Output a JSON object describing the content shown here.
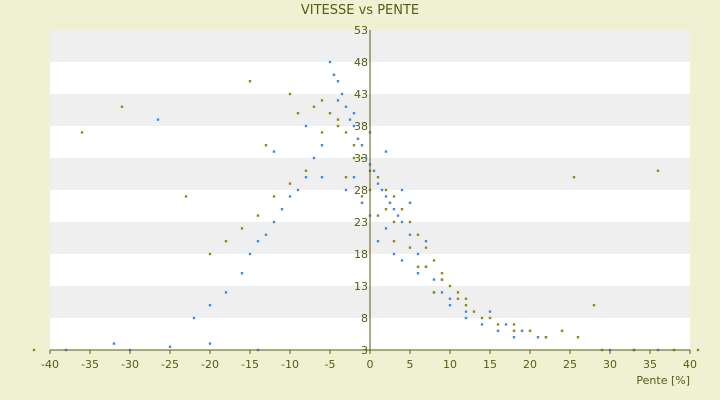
{
  "chart_data": {
    "type": "scatter",
    "title": "VITESSE vs PENTE",
    "xlabel": "Pente [%]",
    "ylabel": "",
    "xlim": [
      -40,
      40
    ],
    "ylim": [
      3,
      53
    ],
    "x_ticks": [
      -40,
      -35,
      -30,
      -25,
      -20,
      -15,
      -10,
      -5,
      0,
      5,
      10,
      15,
      20,
      25,
      30,
      35,
      40
    ],
    "x_tick_labels": [
      "-40",
      "-35",
      "-30",
      "-25",
      "-20",
      "-15",
      "-10",
      "-5",
      "0",
      "5",
      "10",
      "15",
      "20",
      "25",
      "30",
      "35",
      "40"
    ],
    "y_ticks": [
      3,
      8,
      13,
      18,
      23,
      28,
      33,
      38,
      43,
      48,
      53
    ],
    "y_tick_labels": [
      "3",
      "8",
      "13",
      "18",
      "23",
      "28",
      "33",
      "38",
      "43",
      "48",
      "53"
    ],
    "grid": "horizontal bands",
    "legend": "none",
    "colors": {
      "background": "#eef2d2",
      "plot_band_light": "#ffffff",
      "plot_band_dark": "#efefef",
      "axis": "#5a5a14",
      "series_1": "#3a8fd8",
      "series_2": "#8c8c14"
    },
    "series": [
      {
        "name": "",
        "color": "#3a8fd8",
        "x": [
          -5,
          -4.5,
          -4,
          -3.5,
          -3,
          -2.5,
          -2,
          -1.5,
          -1,
          -0.5,
          0,
          0.5,
          1,
          1.5,
          2,
          2.5,
          3,
          3.5,
          4,
          5,
          6,
          7,
          8,
          9,
          10,
          12,
          14,
          16,
          18,
          -6,
          -7,
          -8,
          -9,
          -10,
          -11,
          -12,
          -13,
          -14,
          -15,
          -16,
          -18,
          -20,
          -22,
          -26.5,
          -38,
          -30,
          -32,
          -25,
          -20,
          -14,
          -3,
          -2,
          -1,
          0,
          1,
          2,
          3,
          4,
          6,
          8,
          10,
          12,
          15,
          17,
          19,
          21,
          30,
          33,
          36,
          -4,
          -2,
          0,
          2,
          -8,
          -12,
          -6,
          4,
          5,
          7,
          9
        ],
        "y": [
          48,
          46,
          45,
          43,
          41,
          39,
          38,
          36,
          35,
          33,
          32,
          31,
          29,
          28,
          27,
          26,
          25,
          24,
          23,
          21,
          18,
          16,
          14,
          12,
          10,
          8,
          7,
          6,
          5,
          35,
          33,
          30,
          28,
          27,
          25,
          23,
          21,
          20,
          18,
          15,
          12,
          10,
          8,
          39,
          3,
          3,
          4,
          3.5,
          4,
          3,
          28,
          30,
          26,
          24,
          20,
          22,
          18,
          17,
          15,
          12,
          11,
          9,
          9,
          7,
          6,
          5,
          3,
          3,
          3,
          42,
          40,
          37,
          34,
          38,
          34,
          30,
          28,
          26,
          20,
          14
        ]
      },
      {
        "name": "",
        "color": "#8c8c14",
        "x": [
          -6,
          -5,
          -4,
          -3,
          -2,
          -1,
          0,
          1,
          2,
          3,
          4,
          5,
          6,
          7,
          8,
          9,
          10,
          11,
          12,
          13,
          14,
          16,
          18,
          20,
          22,
          -8,
          -10,
          -12,
          -14,
          -16,
          -18,
          -20,
          -23,
          -31,
          -36,
          -42,
          25.5,
          36,
          24,
          28,
          -15,
          -10,
          -7,
          -4,
          -2,
          0,
          2,
          3,
          5,
          7,
          9,
          12,
          15,
          18,
          22,
          26,
          29,
          33,
          38,
          41,
          -3,
          -1,
          1,
          -9,
          -13,
          -6,
          3,
          6,
          8,
          11
        ],
        "y": [
          42,
          40,
          38,
          37,
          35,
          33,
          31,
          30,
          28,
          27,
          25,
          23,
          21,
          19,
          17,
          15,
          13,
          12,
          11,
          9,
          8,
          7,
          6,
          6,
          5,
          31,
          29,
          27,
          24,
          22,
          20,
          18,
          27,
          41,
          37,
          3,
          30,
          31,
          6,
          10,
          45,
          43,
          41,
          39,
          33,
          28,
          25,
          23,
          19,
          16,
          14,
          10,
          8,
          7,
          5,
          5,
          3,
          3,
          3,
          3,
          30,
          27,
          24,
          40,
          35,
          37,
          20,
          16,
          12,
          11
        ]
      }
    ]
  }
}
